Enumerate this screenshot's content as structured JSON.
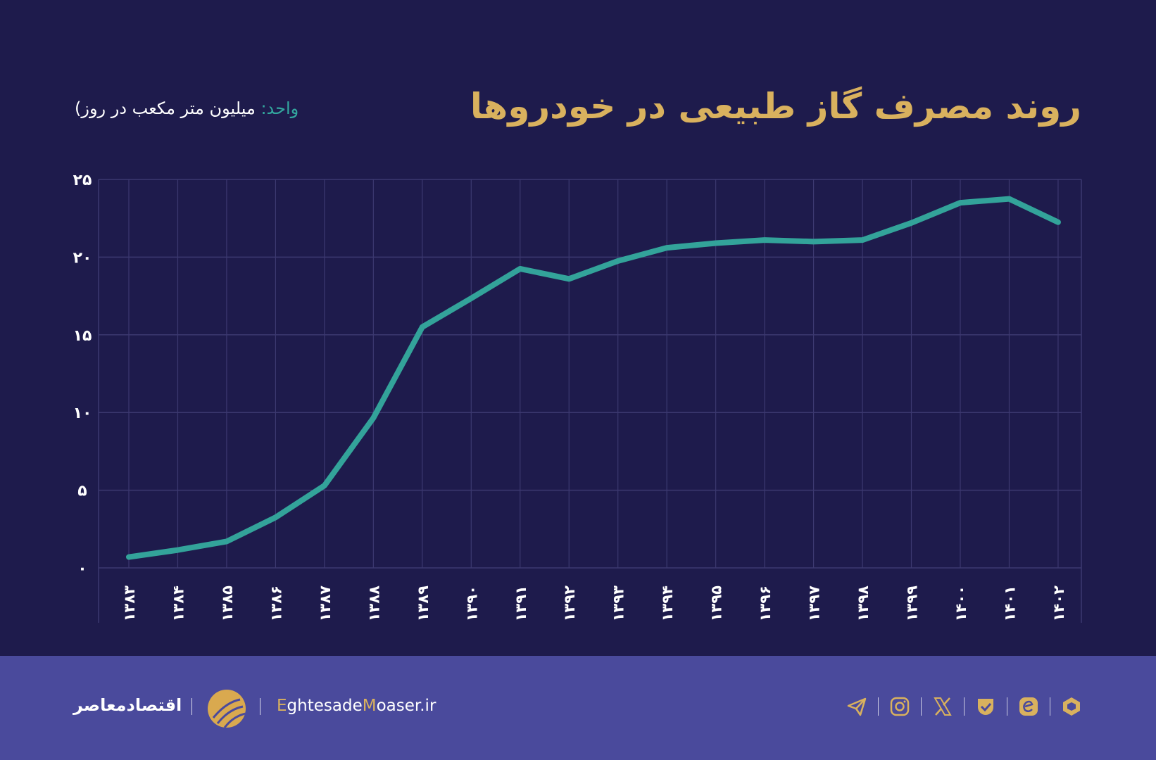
{
  "header": {
    "title": "روند مصرف گاز طبیعی در خودروها",
    "unit_label": "واحد:",
    "unit_value": "میلیون متر مکعب در روز)"
  },
  "chart_data": {
    "type": "line",
    "title": "روند مصرف گاز طبیعی در خودروها",
    "ylabel": "میلیون متر مکعب در روز",
    "categories": [
      "۱۳۸۳",
      "۱۳۸۴",
      "۱۳۸۵",
      "۱۳۸۶",
      "۱۳۸۷",
      "۱۳۸۸",
      "۱۳۸۹",
      "۱۳۹۰",
      "۱۳۹۱",
      "۱۳۹۲",
      "۱۳۹۳",
      "۱۳۹۴",
      "۱۳۹۵",
      "۱۳۹۶",
      "۱۳۹۷",
      "۱۳۹۸",
      "۱۳۹۹",
      "۱۴۰۰",
      "۱۴۰۱",
      "۱۴۰۲"
    ],
    "values": [
      0.7,
      1.15,
      1.7,
      3.25,
      5.3,
      9.65,
      15.5,
      17.35,
      19.25,
      18.6,
      19.75,
      20.6,
      20.9,
      21.1,
      21.0,
      21.1,
      22.2,
      23.5,
      23.75,
      22.25
    ],
    "ylim": [
      0,
      25
    ],
    "yticks": [
      0,
      5,
      10,
      15,
      20,
      25
    ],
    "ytick_labels": [
      "۰",
      "۵",
      "۱۰",
      "۱۵",
      "۲۰",
      "۲۵"
    ],
    "grid": true,
    "line_color": "#33a39a"
  },
  "footer": {
    "brand_fa": "اقتصادمعاصر",
    "site_parts": [
      "E",
      "ghtesade",
      "M",
      "oaser.ir"
    ],
    "social_icons": [
      "telegram-icon",
      "instagram-icon",
      "x-icon",
      "bale-icon",
      "eitaa-icon",
      "rubika-icon"
    ],
    "accent": "#d9b15e"
  }
}
